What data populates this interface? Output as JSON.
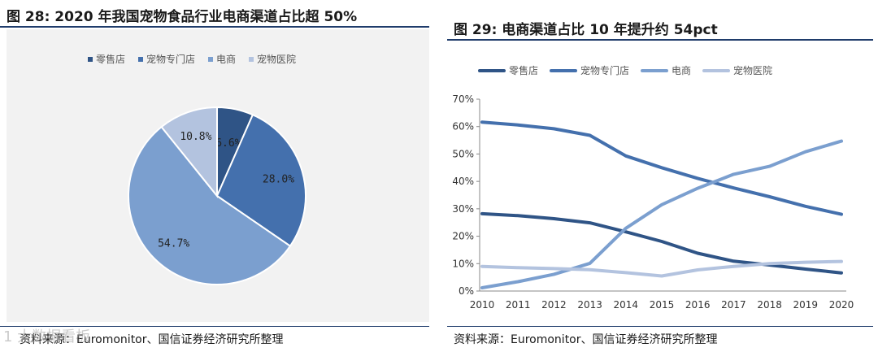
{
  "figures": {
    "left": {
      "title": "图 28:  2020 年我国宠物食品行业电商渠道占比超 50%",
      "source": "资料来源：Euromonitor、国信证券经济研究所整理",
      "legend": [
        "零售店",
        "宠物专门店",
        "电商",
        "宠物医院"
      ]
    },
    "right": {
      "title": "图 29:  电商渠道占比 10 年提升约 54pct",
      "source": "资料来源：Euromonitor、国信证券经济研究所整理",
      "legend": [
        "零售店",
        "宠物专门店",
        "电商",
        "宠物医院"
      ]
    }
  },
  "watermark": "1 大数据看板",
  "colors": {
    "retail": "#2f5486",
    "specialty": "#4470ad",
    "ecommerce": "#7b9fcf",
    "hospital": "#b3c3df"
  },
  "chart_data": [
    {
      "type": "pie",
      "title": "",
      "slices": [
        {
          "name": "零售店",
          "value": 6.6,
          "label": "6.6%"
        },
        {
          "name": "宠物专门店",
          "value": 28.0,
          "label": "28.0%"
        },
        {
          "name": "电商",
          "value": 54.7,
          "label": "54.7%"
        },
        {
          "name": "宠物医院",
          "value": 10.8,
          "label": "10.8%"
        }
      ],
      "legend_position": "top"
    },
    {
      "type": "line",
      "title": "",
      "x": [
        2010,
        2011,
        2012,
        2013,
        2014,
        2015,
        2016,
        2017,
        2018,
        2019,
        2020
      ],
      "xticks": [
        "2010",
        "2011",
        "2012",
        "2013",
        "2014",
        "2015",
        "2016",
        "2017",
        "2018",
        "2019",
        "2020"
      ],
      "yticks": [
        "0%",
        "10%",
        "20%",
        "30%",
        "40%",
        "50%",
        "60%",
        "70%"
      ],
      "ylim": [
        0,
        70
      ],
      "series": [
        {
          "name": "零售店",
          "values": [
            28.2,
            27.5,
            26.4,
            24.9,
            21.6,
            18.1,
            13.8,
            10.9,
            9.5,
            8.0,
            6.6
          ]
        },
        {
          "name": "宠物专门店",
          "values": [
            61.6,
            60.6,
            59.2,
            56.8,
            49.3,
            45.0,
            41.1,
            37.6,
            34.4,
            30.9,
            28.0
          ]
        },
        {
          "name": "电商",
          "values": [
            1.2,
            3.4,
            6.1,
            10.1,
            22.9,
            31.5,
            37.5,
            42.6,
            45.5,
            50.8,
            54.7
          ]
        },
        {
          "name": "宠物医院",
          "values": [
            9.0,
            8.5,
            8.2,
            7.8,
            6.7,
            5.5,
            7.7,
            9.0,
            10.0,
            10.5,
            10.8
          ]
        }
      ],
      "grid": false,
      "legend_position": "top"
    }
  ]
}
